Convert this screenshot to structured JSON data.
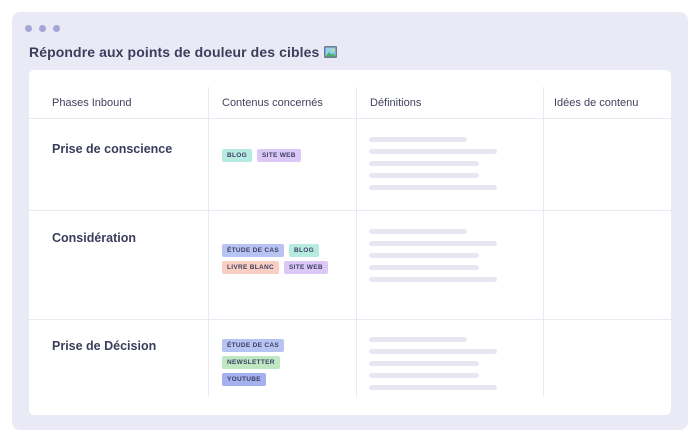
{
  "title": "Répondre aux points de douleur des cibles",
  "title_icon": "framed-picture-icon",
  "columns": [
    "Phases Inbound",
    "Contenus concernés",
    "Définitions",
    "Idées de contenu"
  ],
  "colors": {
    "tag_teal": "#b6ebe2",
    "tag_purple": "#dcc8f7",
    "tag_blue": "#b7c3f2",
    "tag_peach": "#f9cfc4",
    "tag_green": "#bfe7c2",
    "tag_indigo": "#a5b1ee"
  },
  "rows": [
    {
      "phase": "Prise de conscience",
      "tags": [
        {
          "label": "BLOG",
          "color": "#b6ebe2"
        },
        {
          "label": "SITE WEB",
          "color": "#dcc8f7"
        }
      ]
    },
    {
      "phase": "Considération",
      "tags": [
        {
          "label": "ÉTUDE DE CAS",
          "color": "#b7c3f2"
        },
        {
          "label": "BLOG",
          "color": "#b6ebe2"
        },
        {
          "label": "LIVRE BLANC",
          "color": "#f9cfc4"
        },
        {
          "label": "SITE WEB",
          "color": "#dcc8f7"
        }
      ]
    },
    {
      "phase": "Prise de Décision",
      "tags": [
        {
          "label": "ÉTUDE DE CAS",
          "color": "#b7c3f2"
        },
        {
          "label": "NEWSLETTER",
          "color": "#bfe7c2"
        },
        {
          "label": "YOUTUBE",
          "color": "#a5b1ee"
        }
      ]
    }
  ]
}
